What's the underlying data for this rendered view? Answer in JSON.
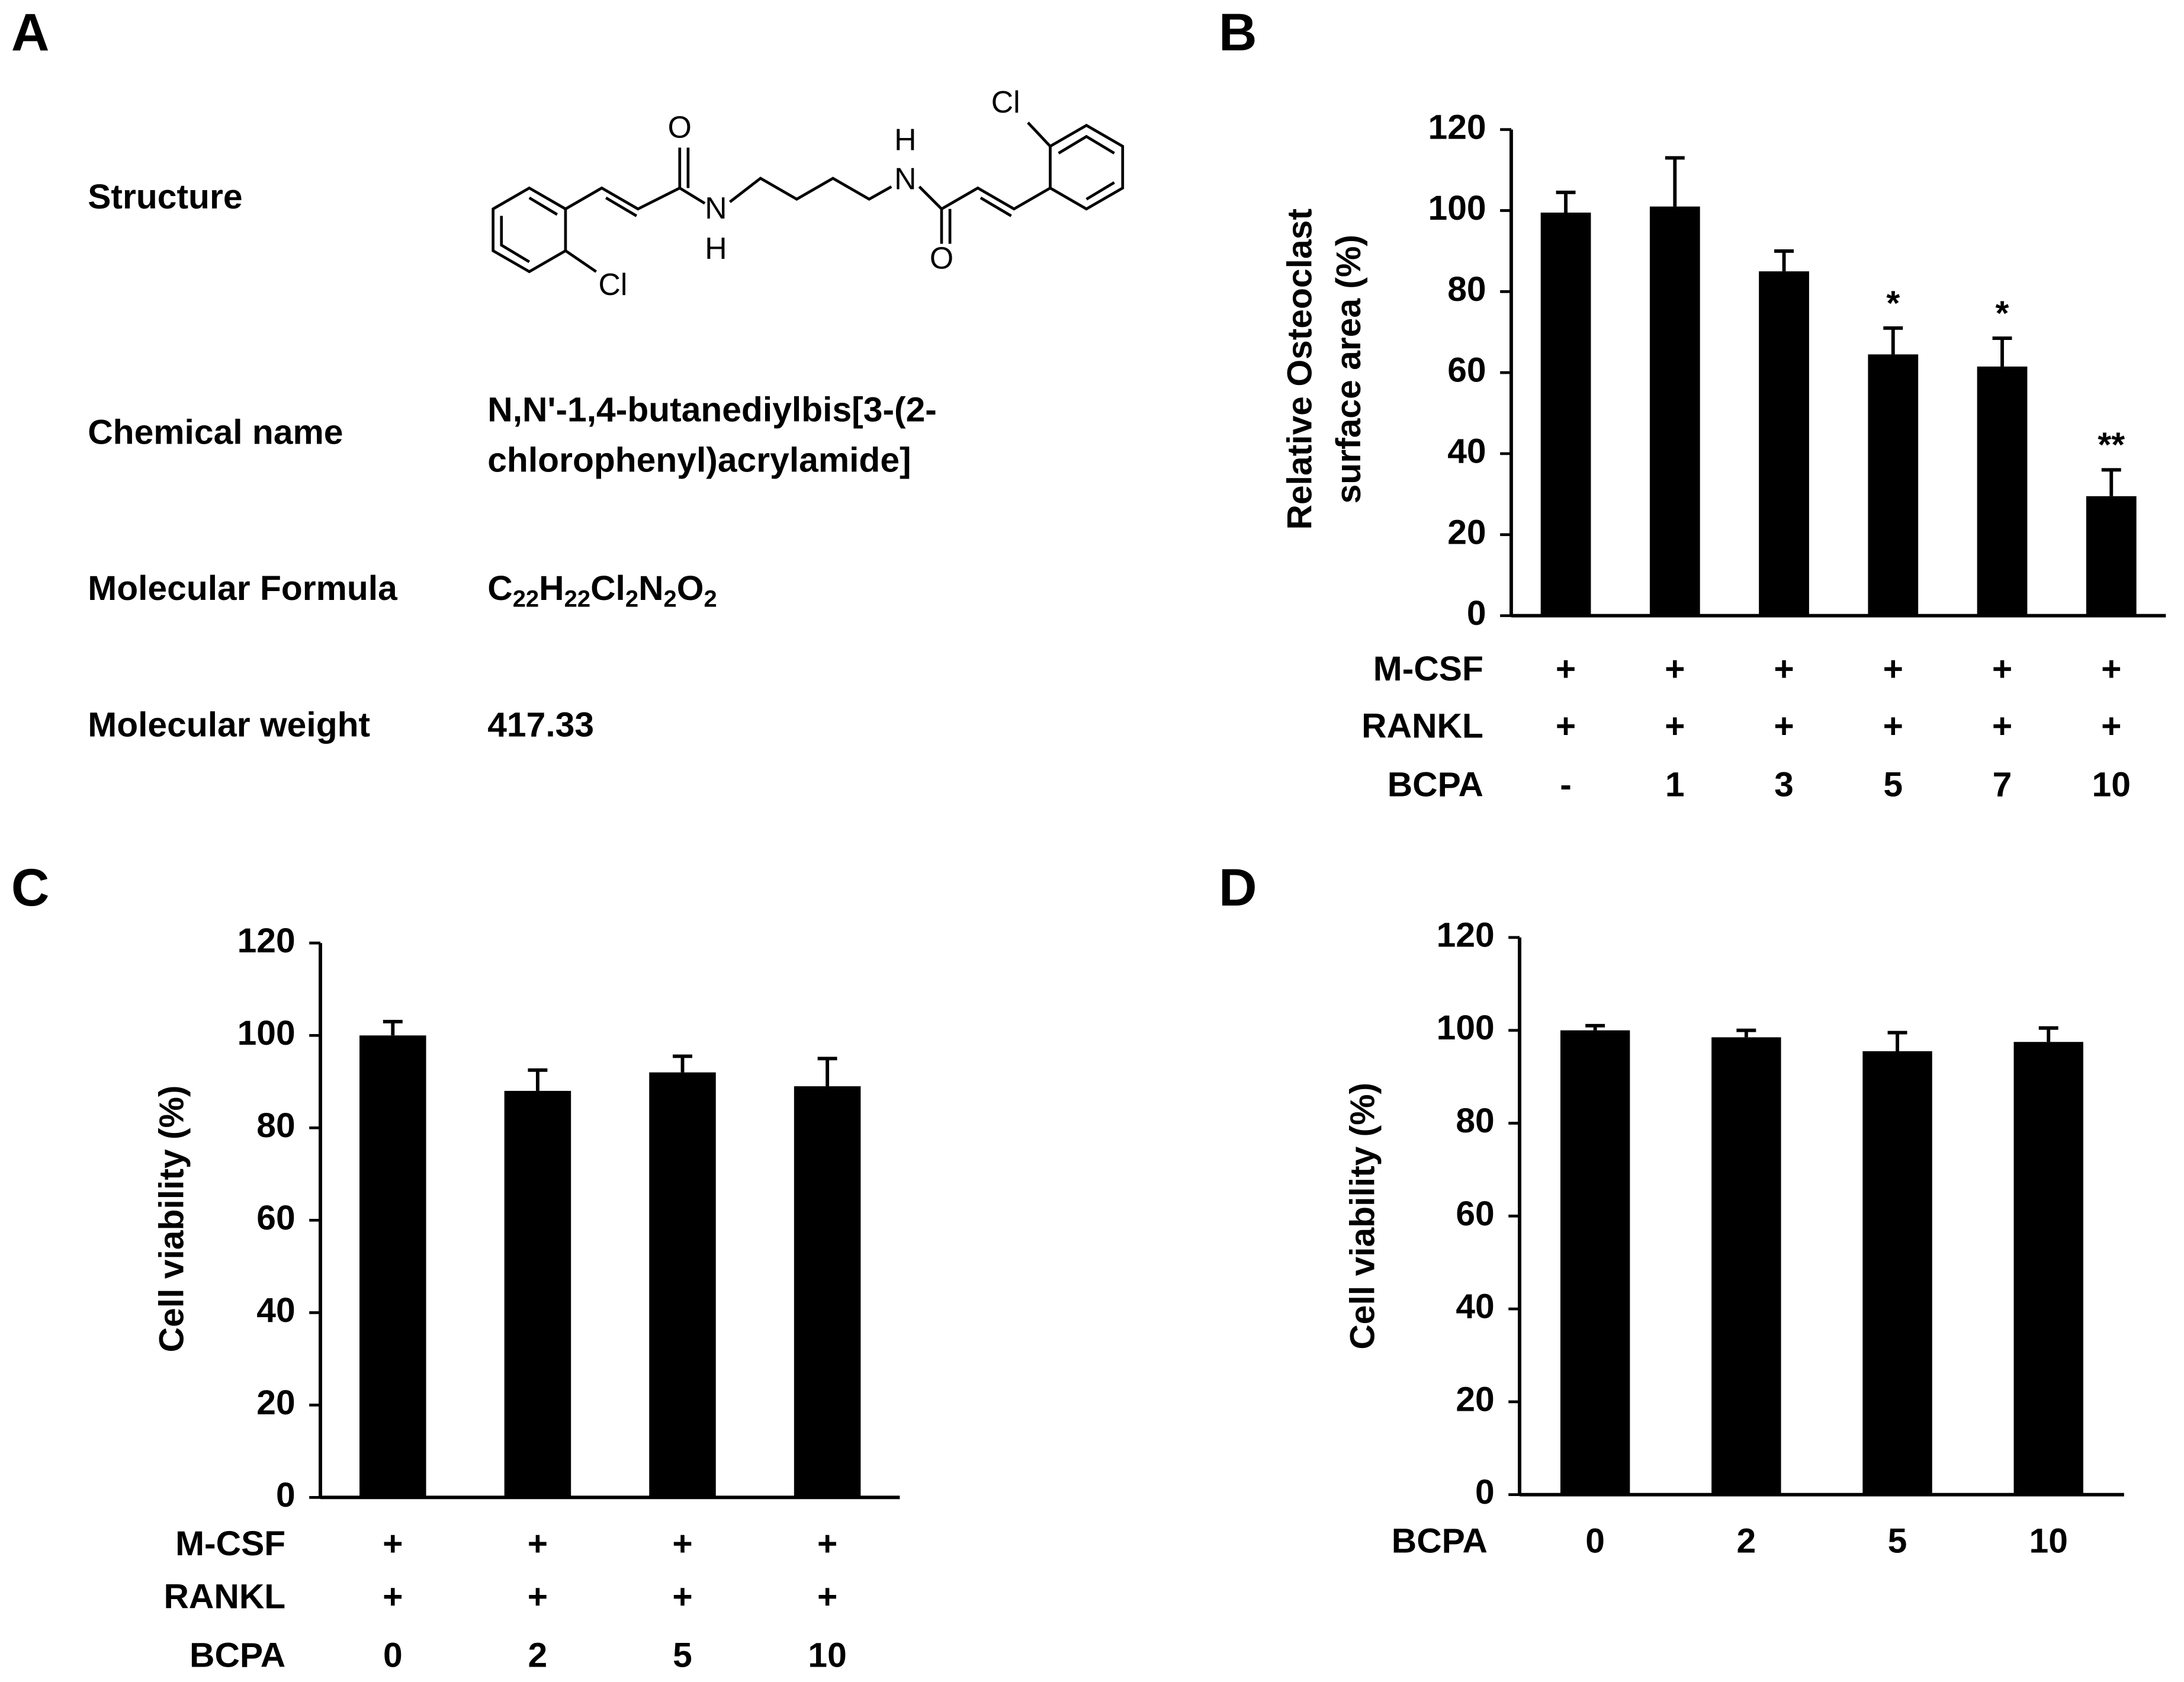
{
  "compound_panel": {
    "panel": "A",
    "structure_label": "Structure",
    "atoms": [
      "O",
      "N",
      "H",
      "N",
      "H",
      "O",
      "Cl",
      "Cl"
    ],
    "chemical_name_label": "Chemical name",
    "chemical_name": [
      "N,N'-1,4-butanediylbis[3-(2-",
      "chlorophenyl)acrylamide]"
    ],
    "formula_label": "Molecular Formula",
    "formula": [
      "C",
      "22",
      "H",
      "22",
      "Cl",
      "2",
      "N",
      "2",
      "O",
      "2"
    ],
    "weight_label": "Molecular weight",
    "weight": "417.33"
  },
  "chart_data": [
    {
      "type": "bar",
      "panel": "B",
      "y_label": [
        "Relative Osteoclast",
        "surface area (%)"
      ],
      "conditions": [
        {
          "name": "M-CSF",
          "labels": [
            "+",
            "+",
            "+",
            "+",
            "+",
            "+"
          ]
        },
        {
          "name": "RANKL",
          "labels": [
            "+",
            "+",
            "+",
            "+",
            "+",
            "+"
          ]
        }
      ],
      "x_label": "BCPA",
      "categories": [
        "-",
        "1",
        "3",
        "5",
        "7",
        "10"
      ],
      "values": [
        99.5,
        101,
        85,
        64.5,
        61.5,
        29.5
      ],
      "errors": [
        5,
        12,
        5,
        6.5,
        7,
        6.5
      ],
      "annotations": [
        null,
        null,
        null,
        "*",
        "*",
        "**"
      ],
      "color": "#000000",
      "ylim": [
        0,
        120
      ],
      "yticks": [
        0,
        20,
        40,
        60,
        80,
        100,
        120
      ]
    },
    {
      "type": "bar",
      "panel": "C",
      "y_label": [
        "Cell viability (%)"
      ],
      "conditions": [
        {
          "name": "M-CSF",
          "labels": [
            "+",
            "+",
            "+",
            "+"
          ]
        },
        {
          "name": "RANKL",
          "labels": [
            "+",
            "+",
            "+",
            "+"
          ]
        }
      ],
      "x_label": "BCPA",
      "categories": [
        "0",
        "2",
        "5",
        "10"
      ],
      "values": [
        100,
        88,
        92,
        89
      ],
      "errors": [
        3,
        4.5,
        3.5,
        6
      ],
      "color": "#000000",
      "ylim": [
        0,
        120
      ],
      "yticks": [
        0,
        20,
        40,
        60,
        80,
        100,
        120
      ]
    },
    {
      "type": "bar",
      "panel": "D",
      "y_label": [
        "Cell viability (%)"
      ],
      "x_label": "BCPA",
      "categories": [
        "0",
        "2",
        "5",
        "10"
      ],
      "values": [
        100,
        98.5,
        95.5,
        97.5
      ],
      "errors": [
        1,
        1.5,
        4,
        3
      ],
      "color": "#000000",
      "ylim": [
        0,
        120
      ],
      "yticks": [
        0,
        20,
        40,
        60,
        80,
        100,
        120
      ]
    }
  ]
}
